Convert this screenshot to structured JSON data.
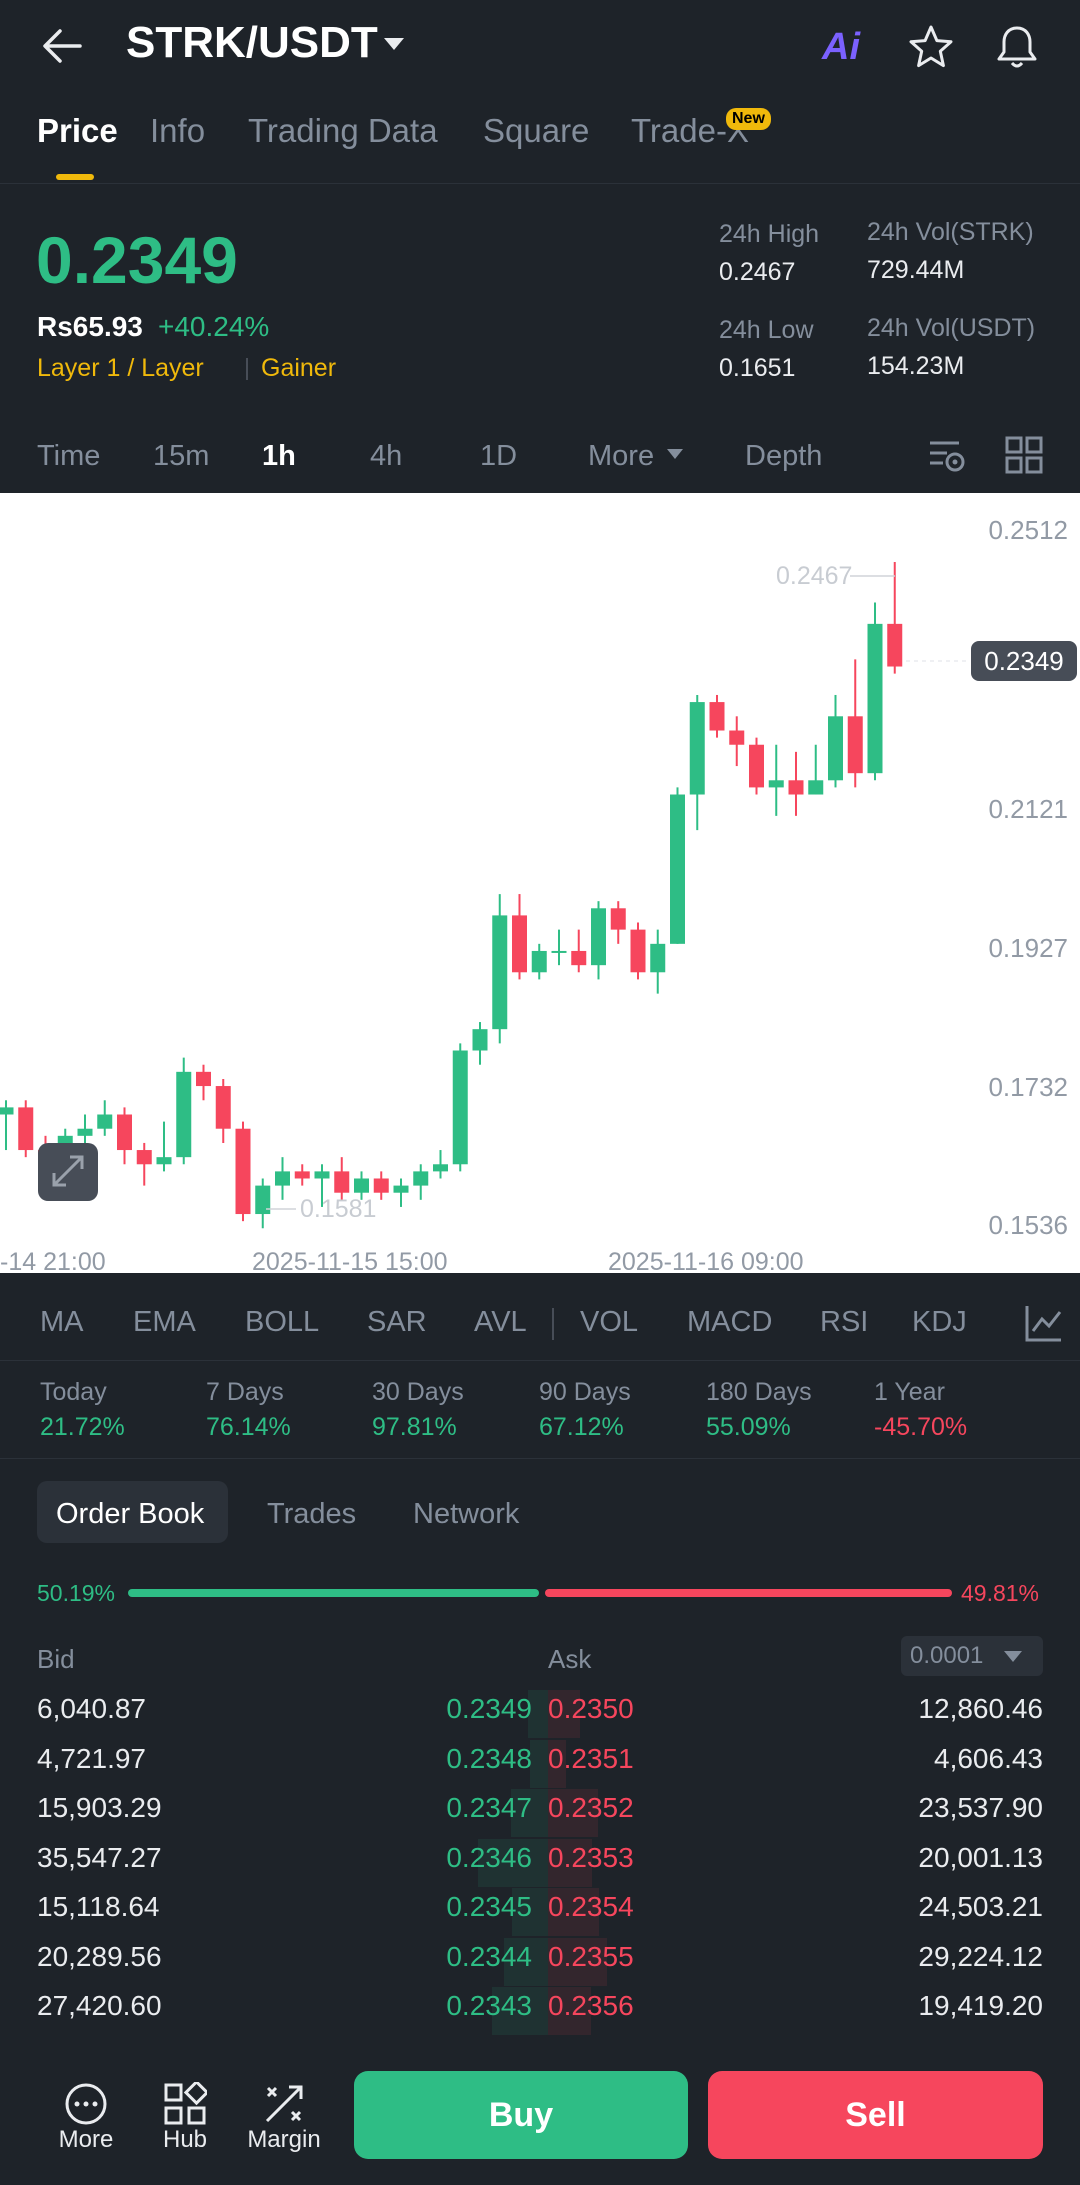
{
  "header": {
    "pair": "STRK/USDT",
    "ai_label": "Ai"
  },
  "tabs": [
    {
      "label": "Price",
      "active": true
    },
    {
      "label": "Info"
    },
    {
      "label": "Trading Data"
    },
    {
      "label": "Square"
    },
    {
      "label": "Trade-X",
      "badge": "New"
    }
  ],
  "price": {
    "last": "0.2349",
    "fiat": "Rs65.93",
    "change": "+40.24%",
    "tag1": "Layer 1 / Layer",
    "tag2": "Gainer",
    "high_label": "24h High",
    "high": "0.2467",
    "low_label": "24h Low",
    "low": "0.1651",
    "vol_strk_label": "24h Vol(STRK)",
    "vol_strk": "729.44M",
    "vol_usdt_label": "24h Vol(USDT)",
    "vol_usdt": "154.23M"
  },
  "intervals": [
    "Time",
    "15m",
    "1h",
    "4h",
    "1D",
    "More",
    "Depth"
  ],
  "active_interval": "1h",
  "chart_data": {
    "type": "candlestick",
    "y_ticks": [
      "0.2512",
      "0.2121",
      "0.1927",
      "0.1732",
      "0.1536"
    ],
    "x_ticks": [
      "-14 21:00",
      "2025-11-15 15:00",
      "2025-11-16 09:00"
    ],
    "current_price": "0.2349",
    "max_label": "0.2467",
    "min_label": "0.1581",
    "candles": [
      [
        0.169,
        0.17,
        0.164,
        0.171
      ],
      [
        0.17,
        0.164,
        0.163,
        0.171
      ],
      [
        0.164,
        0.162,
        0.16,
        0.166
      ],
      [
        0.162,
        0.166,
        0.161,
        0.167
      ],
      [
        0.166,
        0.167,
        0.164,
        0.169
      ],
      [
        0.167,
        0.169,
        0.166,
        0.171
      ],
      [
        0.169,
        0.164,
        0.162,
        0.17
      ],
      [
        0.164,
        0.162,
        0.159,
        0.165
      ],
      [
        0.162,
        0.163,
        0.161,
        0.168
      ],
      [
        0.163,
        0.175,
        0.162,
        0.177
      ],
      [
        0.175,
        0.173,
        0.171,
        0.176
      ],
      [
        0.173,
        0.167,
        0.165,
        0.174
      ],
      [
        0.167,
        0.155,
        0.154,
        0.168
      ],
      [
        0.155,
        0.159,
        0.153,
        0.16
      ],
      [
        0.159,
        0.161,
        0.157,
        0.163
      ],
      [
        0.161,
        0.16,
        0.159,
        0.162
      ],
      [
        0.16,
        0.161,
        0.156,
        0.162
      ],
      [
        0.161,
        0.158,
        0.157,
        0.163
      ],
      [
        0.158,
        0.16,
        0.157,
        0.161
      ],
      [
        0.16,
        0.158,
        0.157,
        0.161
      ],
      [
        0.158,
        0.159,
        0.156,
        0.16
      ],
      [
        0.159,
        0.161,
        0.157,
        0.162
      ],
      [
        0.161,
        0.162,
        0.16,
        0.164
      ],
      [
        0.162,
        0.178,
        0.161,
        0.179
      ],
      [
        0.178,
        0.181,
        0.176,
        0.182
      ],
      [
        0.181,
        0.197,
        0.179,
        0.2
      ],
      [
        0.197,
        0.189,
        0.188,
        0.2
      ],
      [
        0.189,
        0.192,
        0.188,
        0.193
      ],
      [
        0.192,
        0.192,
        0.19,
        0.195
      ],
      [
        0.192,
        0.19,
        0.189,
        0.195
      ],
      [
        0.19,
        0.198,
        0.188,
        0.199
      ],
      [
        0.198,
        0.195,
        0.193,
        0.199
      ],
      [
        0.195,
        0.189,
        0.188,
        0.196
      ],
      [
        0.189,
        0.193,
        0.186,
        0.195
      ],
      [
        0.193,
        0.214,
        0.193,
        0.215
      ],
      [
        0.214,
        0.227,
        0.209,
        0.228
      ],
      [
        0.227,
        0.223,
        0.222,
        0.228
      ],
      [
        0.223,
        0.221,
        0.218,
        0.225
      ],
      [
        0.221,
        0.215,
        0.214,
        0.222
      ],
      [
        0.215,
        0.216,
        0.211,
        0.221
      ],
      [
        0.216,
        0.214,
        0.211,
        0.22
      ],
      [
        0.214,
        0.216,
        0.214,
        0.221
      ],
      [
        0.216,
        0.225,
        0.215,
        0.228
      ],
      [
        0.225,
        0.217,
        0.215,
        0.233
      ],
      [
        0.217,
        0.238,
        0.216,
        0.241
      ],
      [
        0.238,
        0.232,
        0.231,
        0.2467
      ]
    ]
  },
  "indicators": [
    "MA",
    "EMA",
    "BOLL",
    "SAR",
    "AVL",
    "VOL",
    "MACD",
    "RSI",
    "KDJ"
  ],
  "performance": [
    {
      "label": "Today",
      "value": "21.72%",
      "dir": "up"
    },
    {
      "label": "7 Days",
      "value": "76.14%",
      "dir": "up"
    },
    {
      "label": "30 Days",
      "value": "97.81%",
      "dir": "up"
    },
    {
      "label": "90 Days",
      "value": "67.12%",
      "dir": "up"
    },
    {
      "label": "180 Days",
      "value": "55.09%",
      "dir": "up"
    },
    {
      "label": "1 Year",
      "value": "-45.70%",
      "dir": "down"
    }
  ],
  "orderbook": {
    "tabs": [
      "Order Book",
      "Trades",
      "Network"
    ],
    "bid_pct": "50.19%",
    "ask_pct": "49.81%",
    "bid_ratio": 0.5019,
    "bid_label": "Bid",
    "ask_label": "Ask",
    "precision": "0.0001",
    "rows": [
      {
        "bid_qty": "6,040.87",
        "bid": "0.2349",
        "ask": "0.2350",
        "ask_qty": "12,860.46"
      },
      {
        "bid_qty": "4,721.97",
        "bid": "0.2348",
        "ask": "0.2351",
        "ask_qty": "4,606.43"
      },
      {
        "bid_qty": "15,903.29",
        "bid": "0.2347",
        "ask": "0.2352",
        "ask_qty": "23,537.90"
      },
      {
        "bid_qty": "35,547.27",
        "bid": "0.2346",
        "ask": "0.2353",
        "ask_qty": "20,001.13"
      },
      {
        "bid_qty": "15,118.64",
        "bid": "0.2345",
        "ask": "0.2354",
        "ask_qty": "24,503.21"
      },
      {
        "bid_qty": "20,289.56",
        "bid": "0.2344",
        "ask": "0.2355",
        "ask_qty": "29,224.12"
      },
      {
        "bid_qty": "27,420.60",
        "bid": "0.2343",
        "ask": "0.2356",
        "ask_qty": "19,419.20"
      }
    ]
  },
  "bottom": {
    "more": "More",
    "hub": "Hub",
    "margin": "Margin",
    "buy": "Buy",
    "sell": "Sell"
  },
  "colors": {
    "up": "#2ebd85",
    "down": "#f6465d",
    "accent": "#f0b90b",
    "bg": "#1e2329"
  }
}
